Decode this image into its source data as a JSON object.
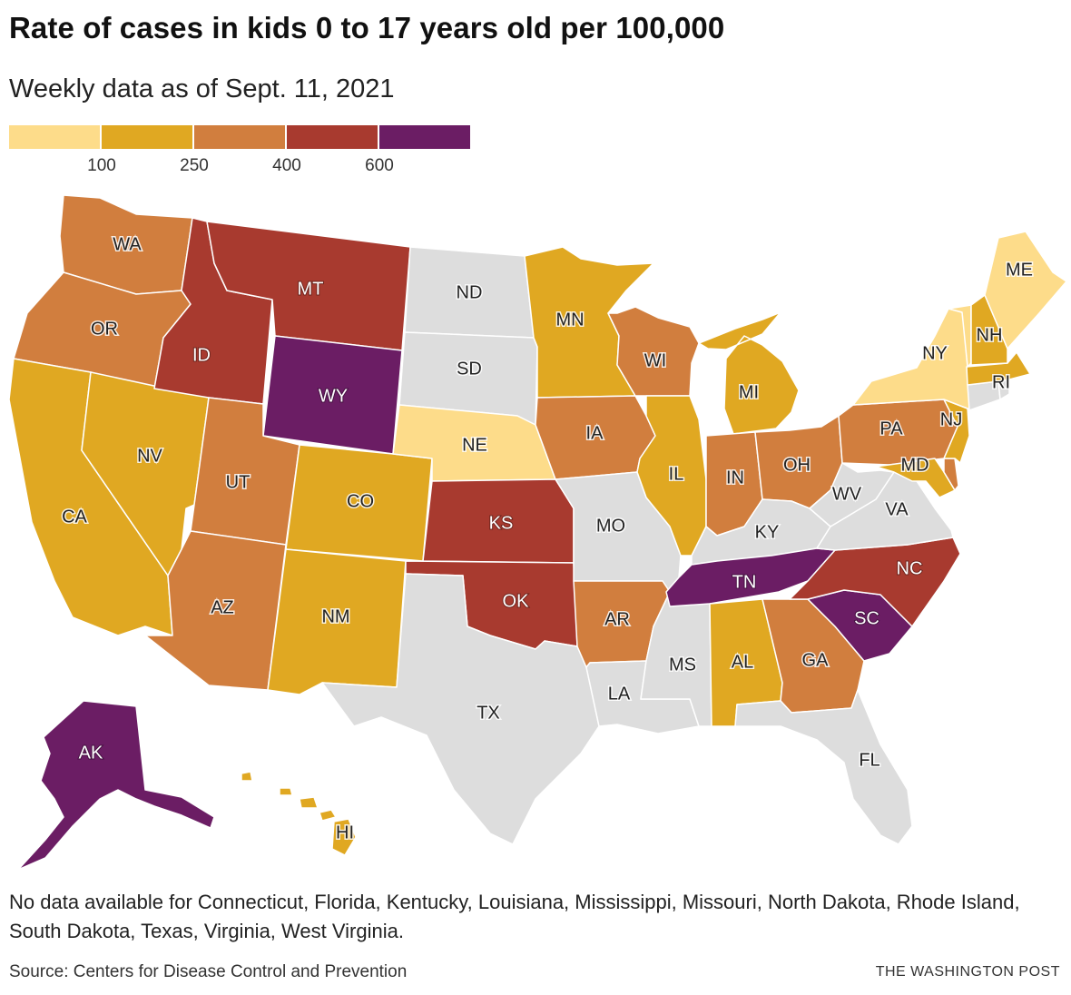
{
  "title": "Rate of cases in kids 0 to 17 years old per 100,000",
  "subtitle": "Weekly data as of Sept. 11, 2021",
  "legend": {
    "colors": [
      "#fddc8a",
      "#e0a822",
      "#d17e3e",
      "#a83a2f",
      "#6b1d64"
    ],
    "ticks": [
      "100",
      "250",
      "400",
      "600"
    ]
  },
  "no_data_color": "#dddddd",
  "states": [
    {
      "abbr": "WA",
      "bin": 2
    },
    {
      "abbr": "OR",
      "bin": 2
    },
    {
      "abbr": "CA",
      "bin": 1
    },
    {
      "abbr": "NV",
      "bin": 1
    },
    {
      "abbr": "ID",
      "bin": 3
    },
    {
      "abbr": "MT",
      "bin": 3
    },
    {
      "abbr": "WY",
      "bin": 4
    },
    {
      "abbr": "UT",
      "bin": 2
    },
    {
      "abbr": "AZ",
      "bin": 2
    },
    {
      "abbr": "CO",
      "bin": 1
    },
    {
      "abbr": "NM",
      "bin": 1
    },
    {
      "abbr": "ND",
      "bin": null
    },
    {
      "abbr": "SD",
      "bin": null
    },
    {
      "abbr": "NE",
      "bin": 0
    },
    {
      "abbr": "KS",
      "bin": 3
    },
    {
      "abbr": "OK",
      "bin": 3
    },
    {
      "abbr": "TX",
      "bin": null
    },
    {
      "abbr": "MN",
      "bin": 1
    },
    {
      "abbr": "IA",
      "bin": 2
    },
    {
      "abbr": "MO",
      "bin": null
    },
    {
      "abbr": "AR",
      "bin": 2
    },
    {
      "abbr": "LA",
      "bin": null
    },
    {
      "abbr": "WI",
      "bin": 2
    },
    {
      "abbr": "IL",
      "bin": 1
    },
    {
      "abbr": "MS",
      "bin": null
    },
    {
      "abbr": "MI",
      "bin": 1
    },
    {
      "abbr": "IN",
      "bin": 2
    },
    {
      "abbr": "KY",
      "bin": null
    },
    {
      "abbr": "TN",
      "bin": 4
    },
    {
      "abbr": "AL",
      "bin": 1
    },
    {
      "abbr": "OH",
      "bin": 2
    },
    {
      "abbr": "GA",
      "bin": 2
    },
    {
      "abbr": "FL",
      "bin": null
    },
    {
      "abbr": "SC",
      "bin": 4
    },
    {
      "abbr": "NC",
      "bin": 3
    },
    {
      "abbr": "VA",
      "bin": null
    },
    {
      "abbr": "WV",
      "bin": null
    },
    {
      "abbr": "PA",
      "bin": 2
    },
    {
      "abbr": "MD",
      "bin": 1
    },
    {
      "abbr": "DE",
      "bin": 2
    },
    {
      "abbr": "NJ",
      "bin": 1
    },
    {
      "abbr": "NY",
      "bin": 0
    },
    {
      "abbr": "CT",
      "bin": null
    },
    {
      "abbr": "RI",
      "bin": null
    },
    {
      "abbr": "MA",
      "bin": 1
    },
    {
      "abbr": "VT",
      "bin": 0
    },
    {
      "abbr": "NH",
      "bin": 1
    },
    {
      "abbr": "ME",
      "bin": 0
    },
    {
      "abbr": "AK",
      "bin": 4
    },
    {
      "abbr": "HI",
      "bin": 1
    }
  ],
  "note": "No data available for Connecticut, Florida, Kentucky, Louisiana, Mississippi, Missouri, North Dakota, Rhode Island, South Dakota, Texas, Virginia, West Virginia.",
  "source": "Source: Centers for Disease Control and Prevention",
  "credit": "THE WASHINGTON POST"
}
